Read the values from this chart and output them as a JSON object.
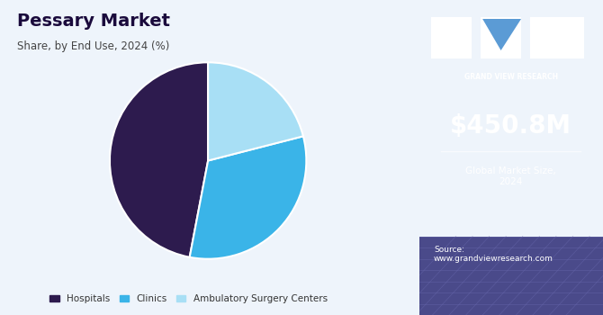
{
  "title": "Pessary Market",
  "subtitle": "Share, by End Use, 2024 (%)",
  "pie_labels": [
    "Hospitals",
    "Clinics",
    "Ambulatory Surgery Centers"
  ],
  "pie_values": [
    47,
    32,
    21
  ],
  "pie_colors": [
    "#2d1b4e",
    "#3ab4e8",
    "#a8dff5"
  ],
  "pie_startangle": 90,
  "bg_color": "#eef4fb",
  "right_panel_color": "#3b1f6b",
  "market_size": "$450.8M",
  "market_label": "Global Market Size,\n2024",
  "source_text": "Source:\nwww.grandviewresearch.com",
  "legend_labels": [
    "Hospitals",
    "Clinics",
    "Ambulatory Surgery Centers"
  ],
  "legend_colors": [
    "#2d1b4e",
    "#3ab4e8",
    "#a8dff5"
  ],
  "title_color": "#1a0a3c",
  "subtitle_color": "#444444",
  "gvr_label": "GRAND VIEW RESEARCH"
}
